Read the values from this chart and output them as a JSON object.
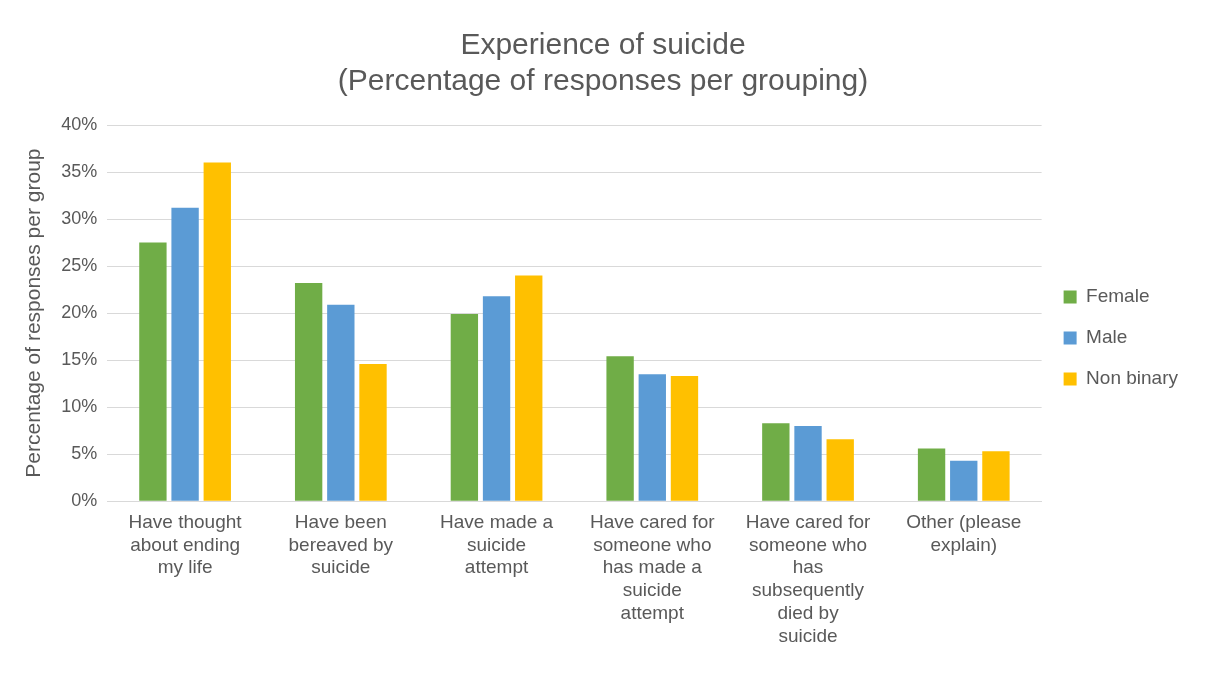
{
  "chart_data": {
    "type": "bar",
    "title": "Experience of suicide",
    "subtitle": "(Percentage of responses per grouping)",
    "ylabel": "Percentage of responses per group",
    "categories": [
      "Have thought about ending my life",
      "Have been bereaved by suicide",
      "Have made a suicide attempt",
      "Have cared for someone who has made a suicide attempt",
      "Have cared for someone who has subsequently died by suicide",
      "Other (please explain)"
    ],
    "series": [
      {
        "name": "Female",
        "color": "#70ad47",
        "values": [
          27.5,
          23.2,
          19.9,
          15.4,
          8.3,
          5.6
        ]
      },
      {
        "name": "Male",
        "color": "#5b9bd5",
        "values": [
          31.2,
          20.9,
          21.8,
          13.5,
          8.0,
          4.3
        ]
      },
      {
        "name": "Non binary",
        "color": "#ffc000",
        "values": [
          36.0,
          14.6,
          24.0,
          13.3,
          6.6,
          5.3
        ]
      }
    ],
    "ylim": [
      0,
      40
    ],
    "yticks": [
      {
        "value": 0,
        "label": "0%"
      },
      {
        "value": 5,
        "label": "5%"
      },
      {
        "value": 10,
        "label": "10%"
      },
      {
        "value": 15,
        "label": "15%"
      },
      {
        "value": 20,
        "label": "20%"
      },
      {
        "value": 25,
        "label": "25%"
      },
      {
        "value": 30,
        "label": "30%"
      },
      {
        "value": 35,
        "label": "35%"
      },
      {
        "value": 40,
        "label": "40%"
      }
    ],
    "grid": "y",
    "legend": "right"
  }
}
